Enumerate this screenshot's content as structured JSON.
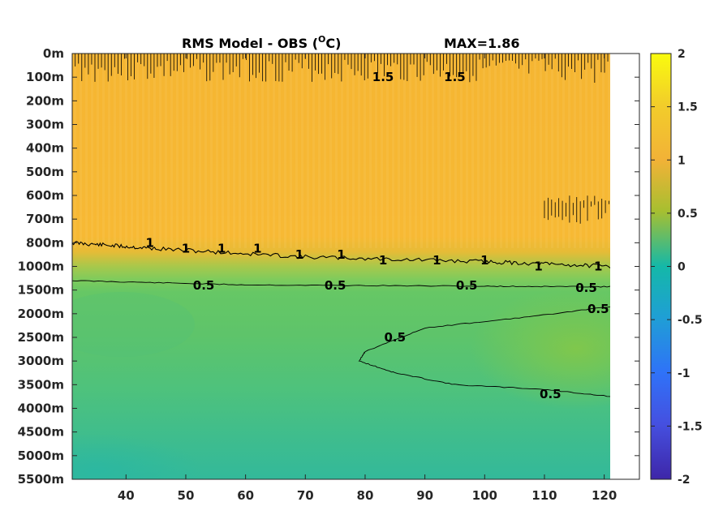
{
  "chart_data": {
    "type": "heatmap",
    "title": "RMS Model - OBS (",
    "title_unit": "O",
    "title_unit_suffix": "C)",
    "max_label": "MAX=1.86",
    "x_ticks": [
      40,
      50,
      60,
      70,
      80,
      90,
      100,
      110,
      120
    ],
    "xlim": [
      31,
      121
    ],
    "y_labels": [
      "0m",
      "100m",
      "200m",
      "300m",
      "400m",
      "500m",
      "600m",
      "700m",
      "800m",
      "1000m",
      "1500m",
      "2000m",
      "2500m",
      "3000m",
      "3500m",
      "4000m",
      "4500m",
      "5000m",
      "5500m"
    ],
    "colorbar_ticks": [
      "2",
      "1.5",
      "1",
      "0.5",
      "0",
      "-0.5",
      "-1",
      "-1.5",
      "-2"
    ],
    "colorbar_range": [
      -2,
      2
    ],
    "contour_labels": [
      {
        "text": "1.5",
        "x": 83,
        "y": "100m"
      },
      {
        "text": "1.5",
        "x": 95,
        "y": "100m"
      },
      {
        "text": "1",
        "x": 44,
        "y": "800m"
      },
      {
        "text": "1",
        "x": 50,
        "y": "850m"
      },
      {
        "text": "1",
        "x": 56,
        "y": "850m"
      },
      {
        "text": "1",
        "x": 62,
        "y": "850m"
      },
      {
        "text": "1",
        "x": 69,
        "y": "900m"
      },
      {
        "text": "1",
        "x": 76,
        "y": "900m"
      },
      {
        "text": "1",
        "x": 83,
        "y": "950m"
      },
      {
        "text": "1",
        "x": 92,
        "y": "950m"
      },
      {
        "text": "1",
        "x": 100,
        "y": "950m"
      },
      {
        "text": "1",
        "x": 109,
        "y": "1000m"
      },
      {
        "text": "1",
        "x": 119,
        "y": "1000m"
      },
      {
        "text": "0.5",
        "x": 53,
        "y": "1400m"
      },
      {
        "text": "0.5",
        "x": 75,
        "y": "1400m"
      },
      {
        "text": "0.5",
        "x": 97,
        "y": "1400m"
      },
      {
        "text": "0.5",
        "x": 117,
        "y": "1450m"
      },
      {
        "text": "0.5",
        "x": 119,
        "y": "1900m"
      },
      {
        "text": "0.5",
        "x": 85,
        "y": "2500m"
      },
      {
        "text": "0.5",
        "x": 111,
        "y": "3700m"
      }
    ],
    "colors": {
      "upper_band": "#f6b62f",
      "mid_band": "#5fc46a",
      "lower_band": "#3dbd92",
      "deep_band": "#2cba9c"
    }
  }
}
